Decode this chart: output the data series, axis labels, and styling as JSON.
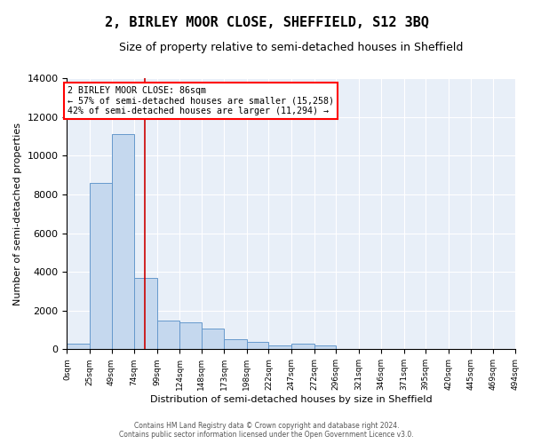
{
  "title": "2, BIRLEY MOOR CLOSE, SHEFFIELD, S12 3BQ",
  "subtitle": "Size of property relative to semi-detached houses in Sheffield",
  "xlabel": "Distribution of semi-detached houses by size in Sheffield",
  "ylabel": "Number of semi-detached properties",
  "annotation_title": "2 BIRLEY MOOR CLOSE: 86sqm",
  "annotation_line1": "← 57% of semi-detached houses are smaller (15,258)",
  "annotation_line2": "42% of semi-detached houses are larger (11,294) →",
  "bin_edges": [
    0,
    25,
    49,
    74,
    99,
    124,
    148,
    173,
    198,
    222,
    247,
    272,
    296,
    321,
    346,
    371,
    395,
    420,
    445,
    469,
    494
  ],
  "bin_labels": [
    "0sqm",
    "25sqm",
    "49sqm",
    "74sqm",
    "99sqm",
    "124sqm",
    "148sqm",
    "173sqm",
    "198sqm",
    "222sqm",
    "247sqm",
    "272sqm",
    "296sqm",
    "321sqm",
    "346sqm",
    "371sqm",
    "395sqm",
    "420sqm",
    "445sqm",
    "469sqm",
    "494sqm"
  ],
  "bar_heights": [
    300,
    8600,
    11100,
    3700,
    1500,
    1380,
    1050,
    500,
    380,
    200,
    290,
    180,
    0,
    0,
    0,
    0,
    0,
    0,
    0,
    0
  ],
  "bar_color": "#C5D8EE",
  "bar_edge_color": "#6699CC",
  "vline_color": "#CC0000",
  "vline_x": 86,
  "ylim": [
    0,
    14000
  ],
  "yticks": [
    0,
    2000,
    4000,
    6000,
    8000,
    10000,
    12000,
    14000
  ],
  "background_color": "#E8EFF8",
  "title_fontsize": 11,
  "subtitle_fontsize": 9,
  "footer_line1": "Contains HM Land Registry data © Crown copyright and database right 2024.",
  "footer_line2": "Contains public sector information licensed under the Open Government Licence v3.0."
}
